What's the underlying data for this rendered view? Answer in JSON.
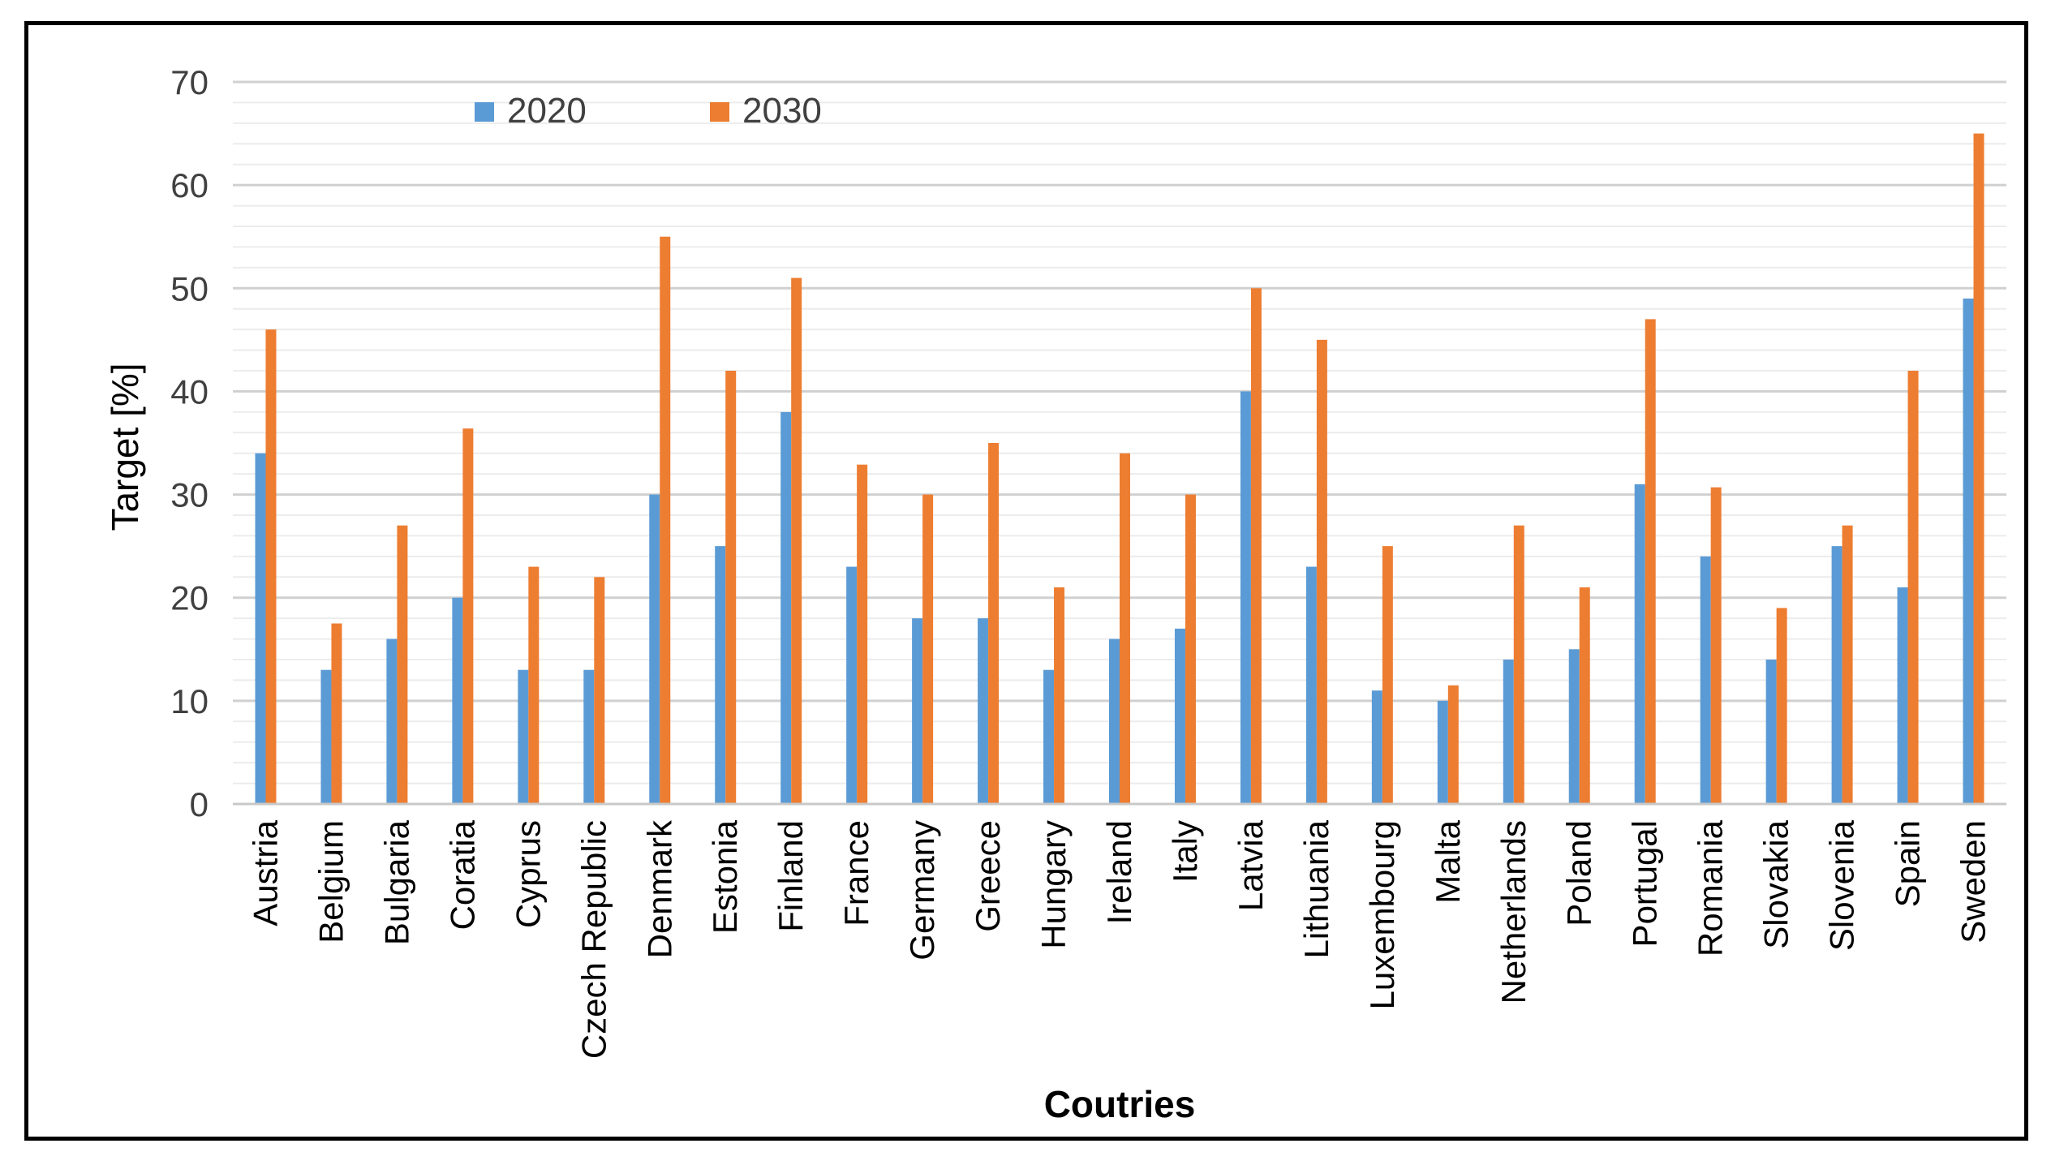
{
  "chart_data": {
    "type": "bar",
    "title": "",
    "xlabel": "Coutries",
    "ylabel": "Target [%]",
    "ylim": [
      0,
      70
    ],
    "yticks": [
      0,
      10,
      20,
      30,
      40,
      50,
      60,
      70
    ],
    "minor_gridlines": true,
    "legend_position": "top-left",
    "categories": [
      "Austria",
      "Belgium",
      "Bulgaria",
      "Coratia",
      "Cyprus",
      "Czech Republic",
      "Denmark",
      "Estonia",
      "Finland",
      "France",
      "Germany",
      "Greece",
      "Hungary",
      "Ireland",
      "Italy",
      "Latvia",
      "Lithuania",
      "Luxembourg",
      "Malta",
      "Netherlands",
      "Poland",
      "Portugal",
      "Romania",
      "Slovakia",
      "Slovenia",
      "Spain",
      "Sweden"
    ],
    "series": [
      {
        "name": "2020",
        "color": "#5b9bd5",
        "values": [
          34,
          13,
          16,
          20,
          13,
          13,
          30,
          25,
          38,
          23,
          18,
          18,
          13,
          16,
          17,
          40,
          23,
          11,
          10,
          14,
          15,
          31,
          24,
          14,
          25,
          21,
          49
        ]
      },
      {
        "name": "2030",
        "color": "#ed7d31",
        "values": [
          46,
          17.5,
          27,
          36.4,
          23,
          22,
          55,
          42,
          51,
          32.9,
          30,
          35,
          21,
          34,
          30,
          50,
          45,
          25,
          11.5,
          27,
          21,
          47,
          30.7,
          19,
          27,
          42,
          65
        ]
      }
    ]
  }
}
